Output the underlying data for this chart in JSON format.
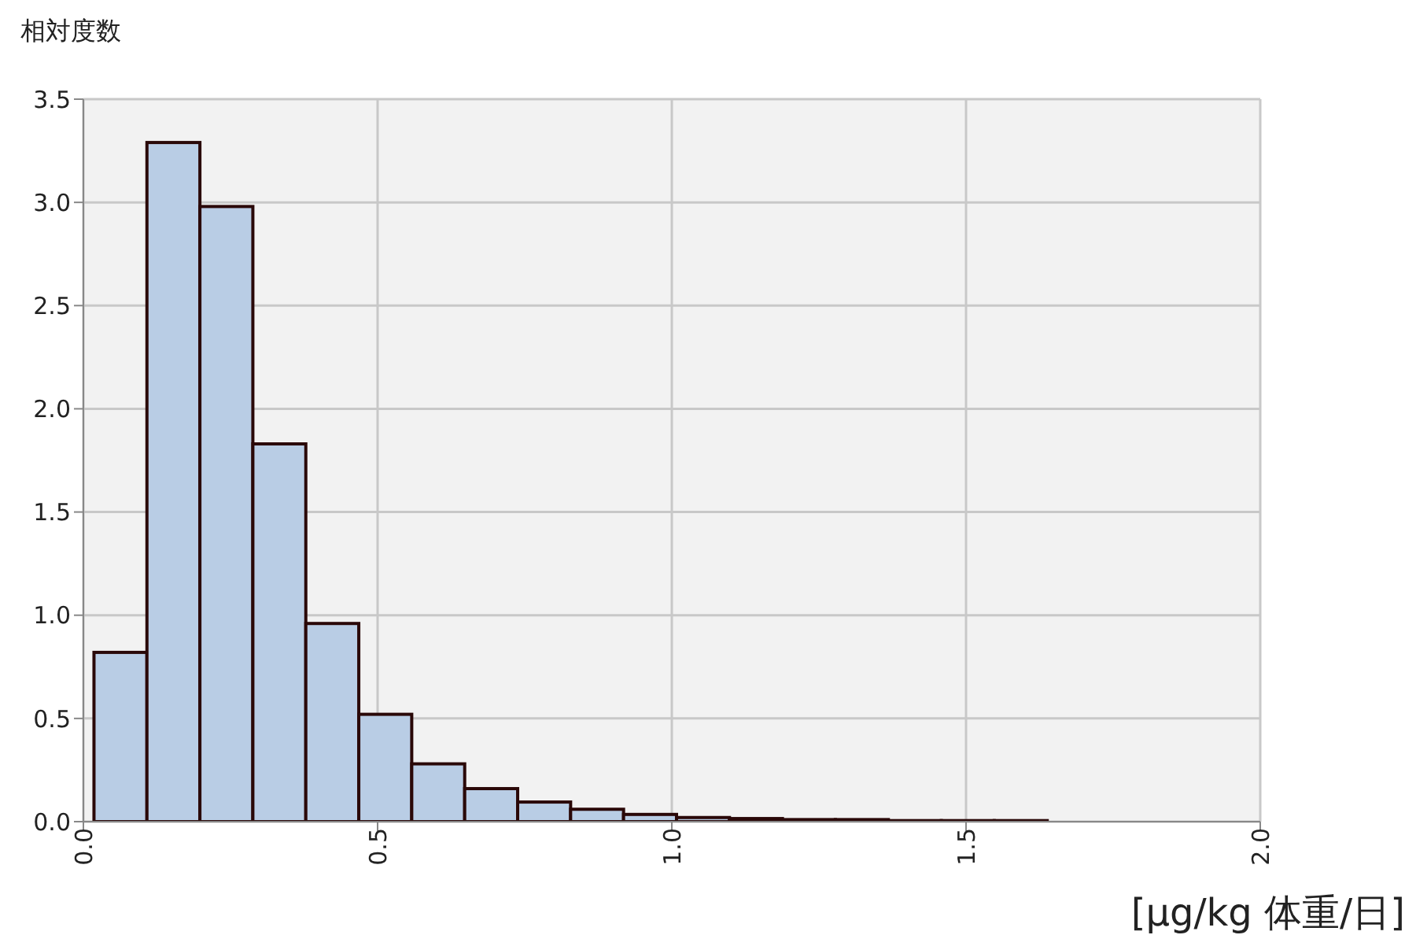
{
  "chart_data": {
    "type": "histogram",
    "ylabel": "相対度数",
    "xlabel": "[μg/kg 体重/日]",
    "bins": [
      0.018,
      0.108,
      0.198,
      0.288,
      0.378,
      0.468,
      0.558,
      0.648,
      0.738,
      0.828,
      0.918,
      1.008,
      1.098,
      1.188,
      1.278,
      1.368,
      1.458,
      1.548,
      1.638,
      1.728,
      1.818,
      1.908,
      1.998
    ],
    "values": [
      0.82,
      3.29,
      2.98,
      1.83,
      0.96,
      0.52,
      0.28,
      0.16,
      0.095,
      0.06,
      0.035,
      0.02,
      0.015,
      0.01,
      0.01,
      0.005,
      0.005,
      0.005,
      null,
      null,
      null,
      null
    ],
    "color": "#b9cde5",
    "xlim": [
      0,
      2
    ],
    "ylim": [
      0,
      3.5
    ],
    "xticks": [
      {
        "value": 0,
        "label": "0.0"
      },
      {
        "value": 0.5,
        "label": "0.5"
      },
      {
        "value": 1,
        "label": "1.0"
      },
      {
        "value": 1.5,
        "label": "1.5"
      },
      {
        "value": 2,
        "label": "2.0"
      }
    ],
    "yticks": [
      {
        "value": 0,
        "label": "0.0"
      },
      {
        "value": 0.5,
        "label": "0.5"
      },
      {
        "value": 1,
        "label": "1.0"
      },
      {
        "value": 1.5,
        "label": "1.5"
      },
      {
        "value": 2,
        "label": "2.0"
      },
      {
        "value": 2.5,
        "label": "2.5"
      },
      {
        "value": 3,
        "label": "3.0"
      },
      {
        "value": 3.5,
        "label": "3.5"
      }
    ],
    "grid": true
  }
}
